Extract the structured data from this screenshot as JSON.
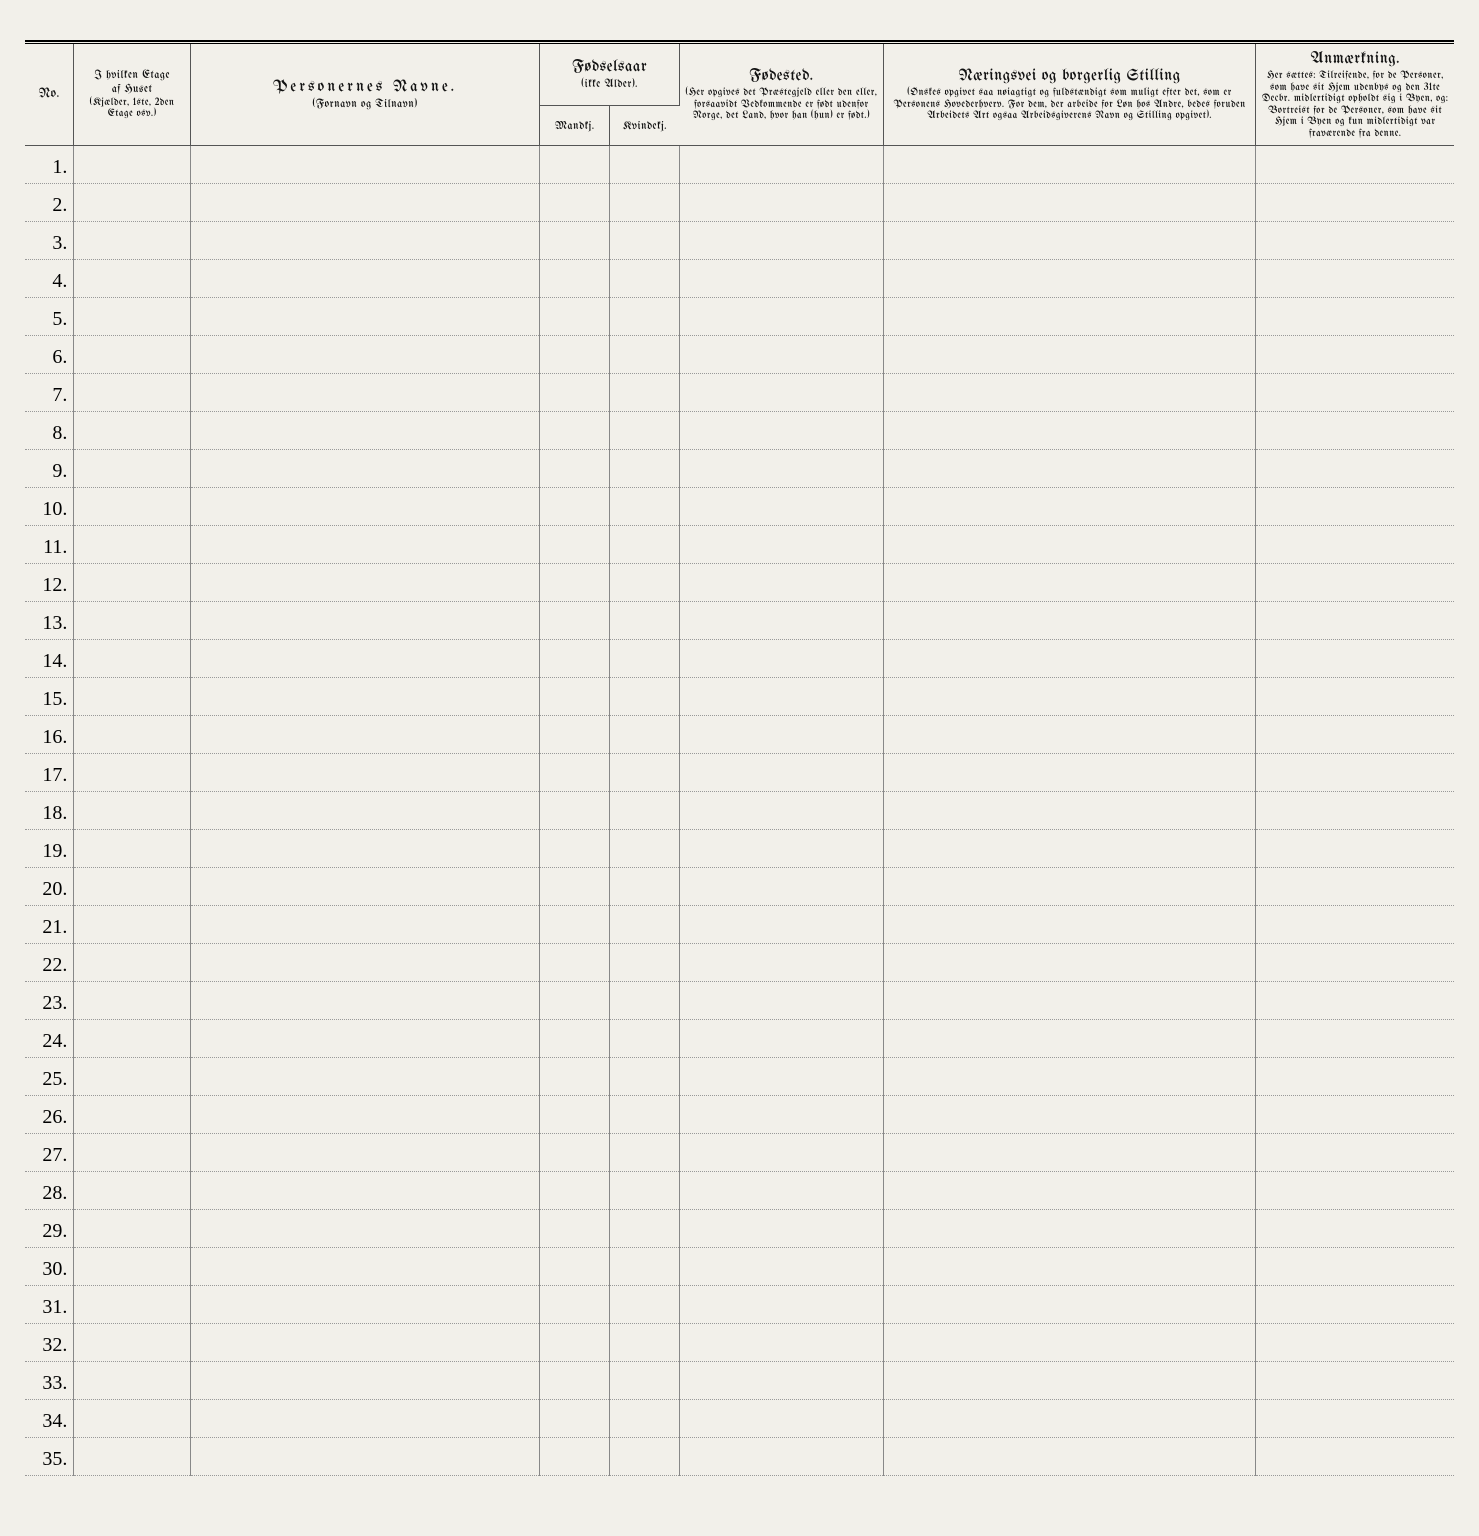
{
  "headers": {
    "no": "No.",
    "etage_title": "I hvilken Etage",
    "etage_sub1": "af Huset",
    "etage_sub2": "(Kjælder, 1ste, 2den Etage osv.)",
    "navne_title": "Personernes Navne.",
    "navne_sub": "(Fornavn og Tilnavn)",
    "fodselsaar_title": "Fødselsaar",
    "fodselsaar_sub": "(ikke Alder).",
    "mandkj": "Mandkj.",
    "kvindekj": "Kvindekj.",
    "fodested_title": "Fødested.",
    "fodested_sub": "(Her opgives det Præstegjeld eller den eller, forsaavidt Vedkommende er født udenfor Norge, det Land, hvor han (hun) er født.)",
    "naering_title": "Næringsvei og borgerlig Stilling",
    "naering_sub": "(Ønskes opgivet saa nøiagtigt og fuldstændigt som muligt efter det, som er Personens Hovederhverv. For dem, der arbeide for Løn hos Andre, bedes foruden Arbeidets Art ogsaa Arbeidsgiverens Navn og Stilling opgivet).",
    "anm_title": "Anmærkning.",
    "anm_sub": "Her sættes: Tilreifende, for de Personer, som have sit Hjem udenbys og den 31te Decbr. midlertidigt opholdt sig i Byen, og: Bortreist for de Personer, som have sit Hjem i Byen og kun midlertidigt var fraværende fra denne."
  },
  "rows": [
    "1.",
    "2.",
    "3.",
    "4.",
    "5.",
    "6.",
    "7.",
    "8.",
    "9.",
    "10.",
    "11.",
    "12.",
    "13.",
    "14.",
    "15.",
    "16.",
    "17.",
    "18.",
    "19.",
    "20.",
    "21.",
    "22.",
    "23.",
    "24.",
    "25.",
    "26.",
    "27.",
    "28.",
    "29.",
    "30.",
    "31.",
    "32.",
    "33.",
    "34.",
    "35."
  ],
  "colors": {
    "page_bg": "#f2f0ea",
    "rule": "#000000",
    "cell_border": "#888888",
    "dotted": "#999999",
    "text": "#111111"
  }
}
